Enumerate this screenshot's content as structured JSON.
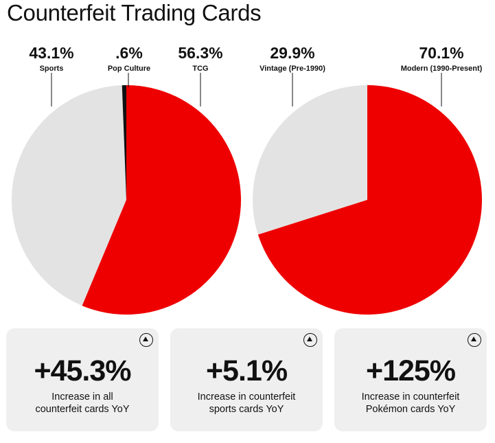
{
  "title": "Counterfeit Trading Cards",
  "colors": {
    "accent": "#ee0000",
    "neutral": "#e3e3e3",
    "dark": "#111111"
  },
  "chart_data": [
    {
      "type": "pie",
      "slices": [
        {
          "label": "Sports",
          "value": 43.1,
          "display": "43.1%",
          "color": "#e3e3e3"
        },
        {
          "label": "Pop Culture",
          "value": 0.6,
          "display": ".6%",
          "color": "#111111"
        },
        {
          "label": "TCG",
          "value": 56.3,
          "display": "56.3%",
          "color": "#ee0000"
        }
      ]
    },
    {
      "type": "pie",
      "slices": [
        {
          "label": "Vintage (Pre-1990)",
          "value": 29.9,
          "display": "29.9%",
          "color": "#e3e3e3"
        },
        {
          "label": "Modern (1990-Present)",
          "value": 70.1,
          "display": "70.1%",
          "color": "#ee0000"
        }
      ]
    }
  ],
  "stats": [
    {
      "value": "+45.3%",
      "line1": "Increase in all",
      "line2": "counterfeit cards YoY",
      "icon": "arrow-up-circle-icon"
    },
    {
      "value": "+5.1%",
      "line1": "Increase in counterfeit",
      "line2": "sports cards YoY",
      "icon": "arrow-up-circle-icon"
    },
    {
      "value": "+125%",
      "line1": "Increase in counterfeit",
      "line2": "Pokémon cards YoY",
      "icon": "arrow-up-circle-icon"
    }
  ]
}
